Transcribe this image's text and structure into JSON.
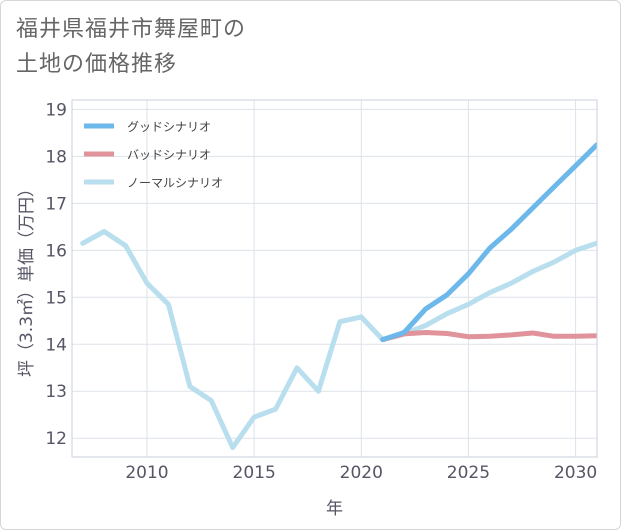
{
  "title": {
    "line1": "福井県福井市舞屋町の",
    "line2": "土地の価格推移"
  },
  "chart_data": {
    "type": "line",
    "xlabel": "年",
    "ylabel": "坪（3.3㎡）単価（万円）",
    "xlim": [
      2006.5,
      2031
    ],
    "ylim": [
      11.6,
      19.2
    ],
    "xticks": [
      2010,
      2015,
      2020,
      2025,
      2030
    ],
    "yticks": [
      12,
      13,
      14,
      15,
      16,
      17,
      18,
      19
    ],
    "grid": true,
    "legend_position": "top-left",
    "series": [
      {
        "name": "グッドシナリオ",
        "color": "#6cb8ea",
        "x": [
          2021,
          2022,
          2023,
          2024,
          2025,
          2026,
          2027,
          2028,
          2029,
          2030,
          2031
        ],
        "y": [
          14.1,
          14.25,
          14.75,
          15.05,
          15.5,
          16.05,
          16.45,
          16.9,
          17.35,
          17.8,
          18.25
        ]
      },
      {
        "name": "バッドシナリオ",
        "color": "#e0939b",
        "x": [
          2021,
          2022,
          2023,
          2024,
          2025,
          2026,
          2027,
          2028,
          2029,
          2030,
          2031
        ],
        "y": [
          14.1,
          14.22,
          14.25,
          14.23,
          14.16,
          14.17,
          14.2,
          14.24,
          14.17,
          14.17,
          14.18
        ]
      },
      {
        "name": "ノーマルシナリオ",
        "color": "#b9dfee",
        "x": [
          2007,
          2008,
          2009,
          2010,
          2011,
          2012,
          2013,
          2014,
          2015,
          2016,
          2017,
          2018,
          2019,
          2020,
          2021,
          2022,
          2023,
          2024,
          2025,
          2026,
          2027,
          2028,
          2029,
          2030,
          2031
        ],
        "y": [
          16.15,
          16.4,
          16.1,
          15.3,
          14.85,
          13.1,
          12.8,
          11.8,
          12.45,
          12.62,
          13.5,
          13.0,
          14.48,
          14.58,
          14.1,
          14.22,
          14.4,
          14.65,
          14.85,
          15.1,
          15.3,
          15.55,
          15.75,
          16.0,
          16.15
        ]
      }
    ]
  }
}
